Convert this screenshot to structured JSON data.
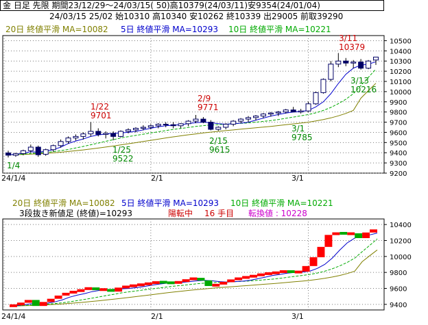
{
  "header": {
    "line1": "金  日足  先限  期間23/12/29～24/03/15( 50)高10379(24/03/11)安9354(24/01/04)",
    "line2": "24/03/15 25/02  始10310  高10340  安10262  終10339  出29005  前取39290"
  },
  "legend_top": {
    "ma20": "20日 終値平滑 MA=10082",
    "ma5": "5日 終値平滑 MA=10293",
    "ma10": "10日 終値平滑 MA=10221"
  },
  "legend_bottom": {
    "ma20": "20日 終値平滑 MA=10082",
    "ma5": "5日 終値平滑 MA=10293",
    "ma10": "10日 終値平滑 MA=10221",
    "kagi_prefix": "3段抜き新値足 (終値)=10293",
    "kagi_state": "陽転中",
    "kagi_count": "16 手目",
    "kagi_turn": "転換値 : 10228"
  },
  "colors": {
    "up": "#ff0000",
    "down": "#00aa00",
    "ma5": "#0000cc",
    "ma10": "#00aa00",
    "ma20": "#808000",
    "annot_red": "#cc0000",
    "annot_green": "#008800"
  },
  "chart_data": [
    {
      "type": "candlestick",
      "title": "金 日足 先限",
      "y_ticks": [
        9200,
        9300,
        9400,
        9500,
        9600,
        9700,
        9800,
        9900,
        10000,
        10100,
        10200,
        10300,
        10400,
        10500
      ],
      "x_ticks": [
        "24/1/4",
        "2/1",
        "3/1"
      ],
      "ylim": [
        9200,
        10550
      ],
      "candles": [
        {
          "o": 9398,
          "h": 9420,
          "l": 9354,
          "c": 9376
        },
        {
          "o": 9375,
          "h": 9400,
          "l": 9360,
          "c": 9390
        },
        {
          "o": 9392,
          "h": 9430,
          "l": 9375,
          "c": 9420
        },
        {
          "o": 9420,
          "h": 9480,
          "l": 9400,
          "c": 9455
        },
        {
          "o": 9455,
          "h": 9470,
          "l": 9360,
          "c": 9380
        },
        {
          "o": 9385,
          "h": 9440,
          "l": 9370,
          "c": 9430
        },
        {
          "o": 9430,
          "h": 9480,
          "l": 9410,
          "c": 9470
        },
        {
          "o": 9470,
          "h": 9530,
          "l": 9450,
          "c": 9510
        },
        {
          "o": 9510,
          "h": 9560,
          "l": 9490,
          "c": 9545
        },
        {
          "o": 9545,
          "h": 9580,
          "l": 9520,
          "c": 9560
        },
        {
          "o": 9560,
          "h": 9600,
          "l": 9530,
          "c": 9585
        },
        {
          "o": 9585,
          "h": 9701,
          "l": 9560,
          "c": 9610
        },
        {
          "o": 9610,
          "h": 9640,
          "l": 9560,
          "c": 9580
        },
        {
          "o": 9580,
          "h": 9610,
          "l": 9540,
          "c": 9590
        },
        {
          "o": 9590,
          "h": 9610,
          "l": 9522,
          "c": 9560
        },
        {
          "o": 9560,
          "h": 9620,
          "l": 9550,
          "c": 9610
        },
        {
          "o": 9610,
          "h": 9640,
          "l": 9590,
          "c": 9625
        },
        {
          "o": 9625,
          "h": 9650,
          "l": 9600,
          "c": 9640
        },
        {
          "o": 9640,
          "h": 9670,
          "l": 9620,
          "c": 9650
        },
        {
          "o": 9650,
          "h": 9680,
          "l": 9630,
          "c": 9665
        },
        {
          "o": 9665,
          "h": 9690,
          "l": 9640,
          "c": 9680
        },
        {
          "o": 9680,
          "h": 9700,
          "l": 9650,
          "c": 9675
        },
        {
          "o": 9675,
          "h": 9700,
          "l": 9640,
          "c": 9665
        },
        {
          "o": 9665,
          "h": 9690,
          "l": 9640,
          "c": 9685
        },
        {
          "o": 9685,
          "h": 9720,
          "l": 9660,
          "c": 9710
        },
        {
          "o": 9710,
          "h": 9771,
          "l": 9690,
          "c": 9730
        },
        {
          "o": 9730,
          "h": 9750,
          "l": 9690,
          "c": 9700
        },
        {
          "o": 9700,
          "h": 9720,
          "l": 9620,
          "c": 9630
        },
        {
          "o": 9630,
          "h": 9660,
          "l": 9615,
          "c": 9650
        },
        {
          "o": 9650,
          "h": 9690,
          "l": 9630,
          "c": 9680
        },
        {
          "o": 9680,
          "h": 9720,
          "l": 9660,
          "c": 9710
        },
        {
          "o": 9710,
          "h": 9740,
          "l": 9690,
          "c": 9730
        },
        {
          "o": 9730,
          "h": 9760,
          "l": 9700,
          "c": 9745
        },
        {
          "o": 9745,
          "h": 9770,
          "l": 9720,
          "c": 9760
        },
        {
          "o": 9760,
          "h": 9790,
          "l": 9740,
          "c": 9780
        },
        {
          "o": 9780,
          "h": 9800,
          "l": 9755,
          "c": 9790
        },
        {
          "o": 9790,
          "h": 9810,
          "l": 9760,
          "c": 9800
        },
        {
          "o": 9800,
          "h": 9830,
          "l": 9785,
          "c": 9820
        },
        {
          "o": 9820,
          "h": 9850,
          "l": 9800,
          "c": 9800
        },
        {
          "o": 9800,
          "h": 9830,
          "l": 9785,
          "c": 9810
        },
        {
          "o": 9810,
          "h": 9900,
          "l": 9800,
          "c": 9880
        },
        {
          "o": 9880,
          "h": 10000,
          "l": 9870,
          "c": 9990
        },
        {
          "o": 9990,
          "h": 10130,
          "l": 9980,
          "c": 10120
        },
        {
          "o": 10120,
          "h": 10300,
          "l": 10100,
          "c": 10270
        },
        {
          "o": 10270,
          "h": 10379,
          "l": 10240,
          "c": 10300
        },
        {
          "o": 10300,
          "h": 10330,
          "l": 10250,
          "c": 10280
        },
        {
          "o": 10280,
          "h": 10310,
          "l": 10230,
          "c": 10290
        },
        {
          "o": 10290,
          "h": 10320,
          "l": 10216,
          "c": 10230
        },
        {
          "o": 10230,
          "h": 10310,
          "l": 10220,
          "c": 10300
        },
        {
          "o": 10310,
          "h": 10340,
          "l": 10262,
          "c": 10339
        }
      ],
      "ma5": [
        9380,
        9385,
        9395,
        9410,
        9405,
        9415,
        9430,
        9455,
        9490,
        9515,
        9535,
        9560,
        9575,
        9585,
        9590,
        9595,
        9600,
        9610,
        9625,
        9640,
        9655,
        9665,
        9670,
        9675,
        9685,
        9695,
        9700,
        9695,
        9685,
        9680,
        9685,
        9690,
        9700,
        9720,
        9740,
        9760,
        9775,
        9790,
        9800,
        9805,
        9815,
        9850,
        9900,
        9980,
        10080,
        10170,
        10230,
        10260,
        10270,
        10293
      ],
      "ma10": [
        9380,
        9382,
        9386,
        9392,
        9398,
        9403,
        9410,
        9420,
        9432,
        9447,
        9462,
        9478,
        9495,
        9512,
        9528,
        9545,
        9558,
        9570,
        9582,
        9594,
        9606,
        9618,
        9629,
        9638,
        9648,
        9658,
        9666,
        9672,
        9676,
        9680,
        9684,
        9688,
        9693,
        9700,
        9708,
        9716,
        9726,
        9738,
        9750,
        9762,
        9775,
        9792,
        9815,
        9845,
        9882,
        9925,
        9980,
        10060,
        10140,
        10221
      ],
      "ma20": [
        9380,
        9381,
        9383,
        9386,
        9390,
        9394,
        9399,
        9405,
        9412,
        9420,
        9428,
        9437,
        9446,
        9456,
        9466,
        9477,
        9488,
        9499,
        9510,
        9522,
        9533,
        9545,
        9556,
        9566,
        9576,
        9585,
        9594,
        9602,
        9610,
        9617,
        9624,
        9631,
        9638,
        9645,
        9652,
        9659,
        9667,
        9675,
        9683,
        9691,
        9700,
        9712,
        9726,
        9742,
        9762,
        9786,
        9816,
        9935,
        10010,
        10082
      ],
      "annotations": [
        {
          "text": "1/22",
          "value": "9701",
          "color": "red"
        },
        {
          "text": "2/9",
          "value": "9771",
          "color": "red"
        },
        {
          "text": "3/11",
          "value": "10379",
          "color": "red"
        },
        {
          "text": "1/4",
          "value": "",
          "color": "green"
        },
        {
          "text": "1/25",
          "value": "9522",
          "color": "green"
        },
        {
          "text": "2/15",
          "value": "9615",
          "color": "green"
        },
        {
          "text": "3/1",
          "value": "9785",
          "color": "green"
        },
        {
          "text": "3/13",
          "value": "10216",
          "color": "green"
        }
      ]
    },
    {
      "type": "bar",
      "title": "3段抜き新値足",
      "y_ticks": [
        9400,
        9600,
        9800,
        10000,
        10200,
        10400
      ],
      "x_ticks": [
        "24/1/4",
        "2/1",
        "3/1"
      ],
      "ylim": [
        9330,
        10470
      ]
    }
  ]
}
